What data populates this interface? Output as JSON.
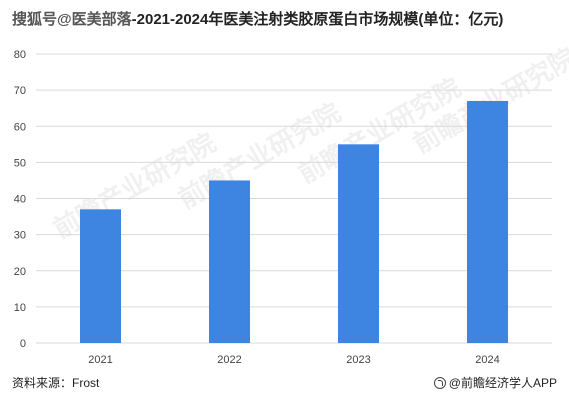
{
  "header": {
    "prefix": "搜狐号@医美部落",
    "title": "-2021-2024年医美注射类胶原蛋白市场规模(单位：亿元)"
  },
  "footer": {
    "source": "资料来源：Frost",
    "brand": "@前瞻经济学人APP"
  },
  "watermark": {
    "text": "前瞻产业研究院"
  },
  "colors": {
    "bar": "#3d85e0",
    "grid": "#d9d9d9",
    "axis_text": "#444444"
  },
  "chart_data": {
    "type": "bar",
    "title": "-2021-2024年医美注射类胶原蛋白市场规模(单位：亿元)",
    "categories": [
      "2021",
      "2022",
      "2023",
      "2024"
    ],
    "series": [
      {
        "values": [
          37,
          45,
          55,
          67
        ]
      }
    ],
    "xlabel": "",
    "ylabel": "",
    "ylim": [
      0,
      80
    ],
    "yticks": [
      0,
      10,
      20,
      30,
      40,
      50,
      60,
      70,
      80
    ],
    "grid": true,
    "legend": "none"
  }
}
